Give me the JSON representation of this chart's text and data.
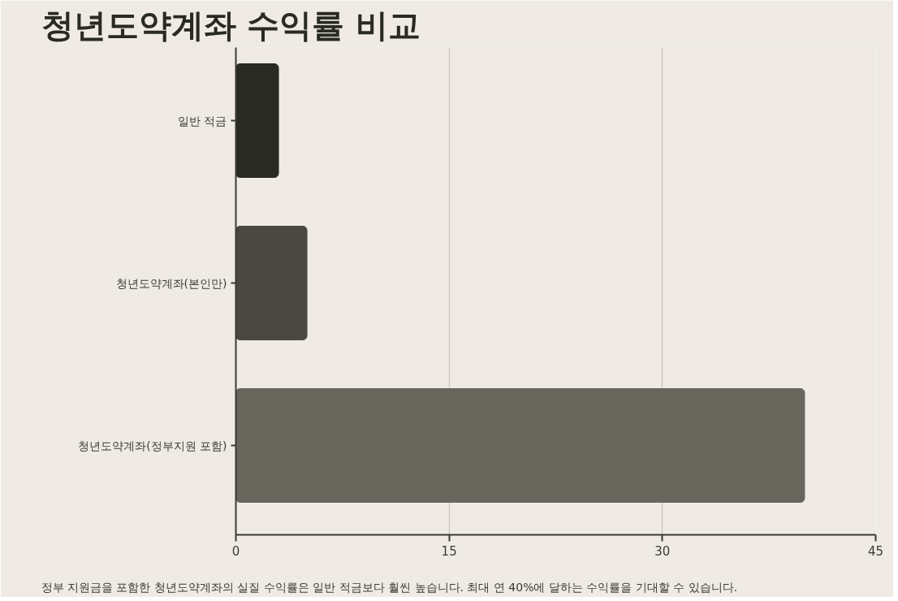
{
  "chart_data": {
    "type": "bar",
    "orientation": "horizontal",
    "title": "청년도약계좌 수익률 비교",
    "categories": [
      "일반 적금",
      "청년도약계좌(본인만)",
      "청년도약계좌(정부지원 포함)"
    ],
    "values": [
      3,
      5,
      40
    ],
    "colors": [
      "#2a2a25",
      "#4a4840",
      "#67665c"
    ],
    "xlim": [
      0,
      45
    ],
    "xticks": [
      0,
      15,
      30,
      45
    ],
    "grid": "x",
    "annotations": [
      "정부 지원금을 포함한 청년도약계좌의 실질 수익률은 일반 적금보다 훨씬 높습니다. 최대 연 40%에 달하는 수익률을 기대할 수 있습니다."
    ]
  }
}
